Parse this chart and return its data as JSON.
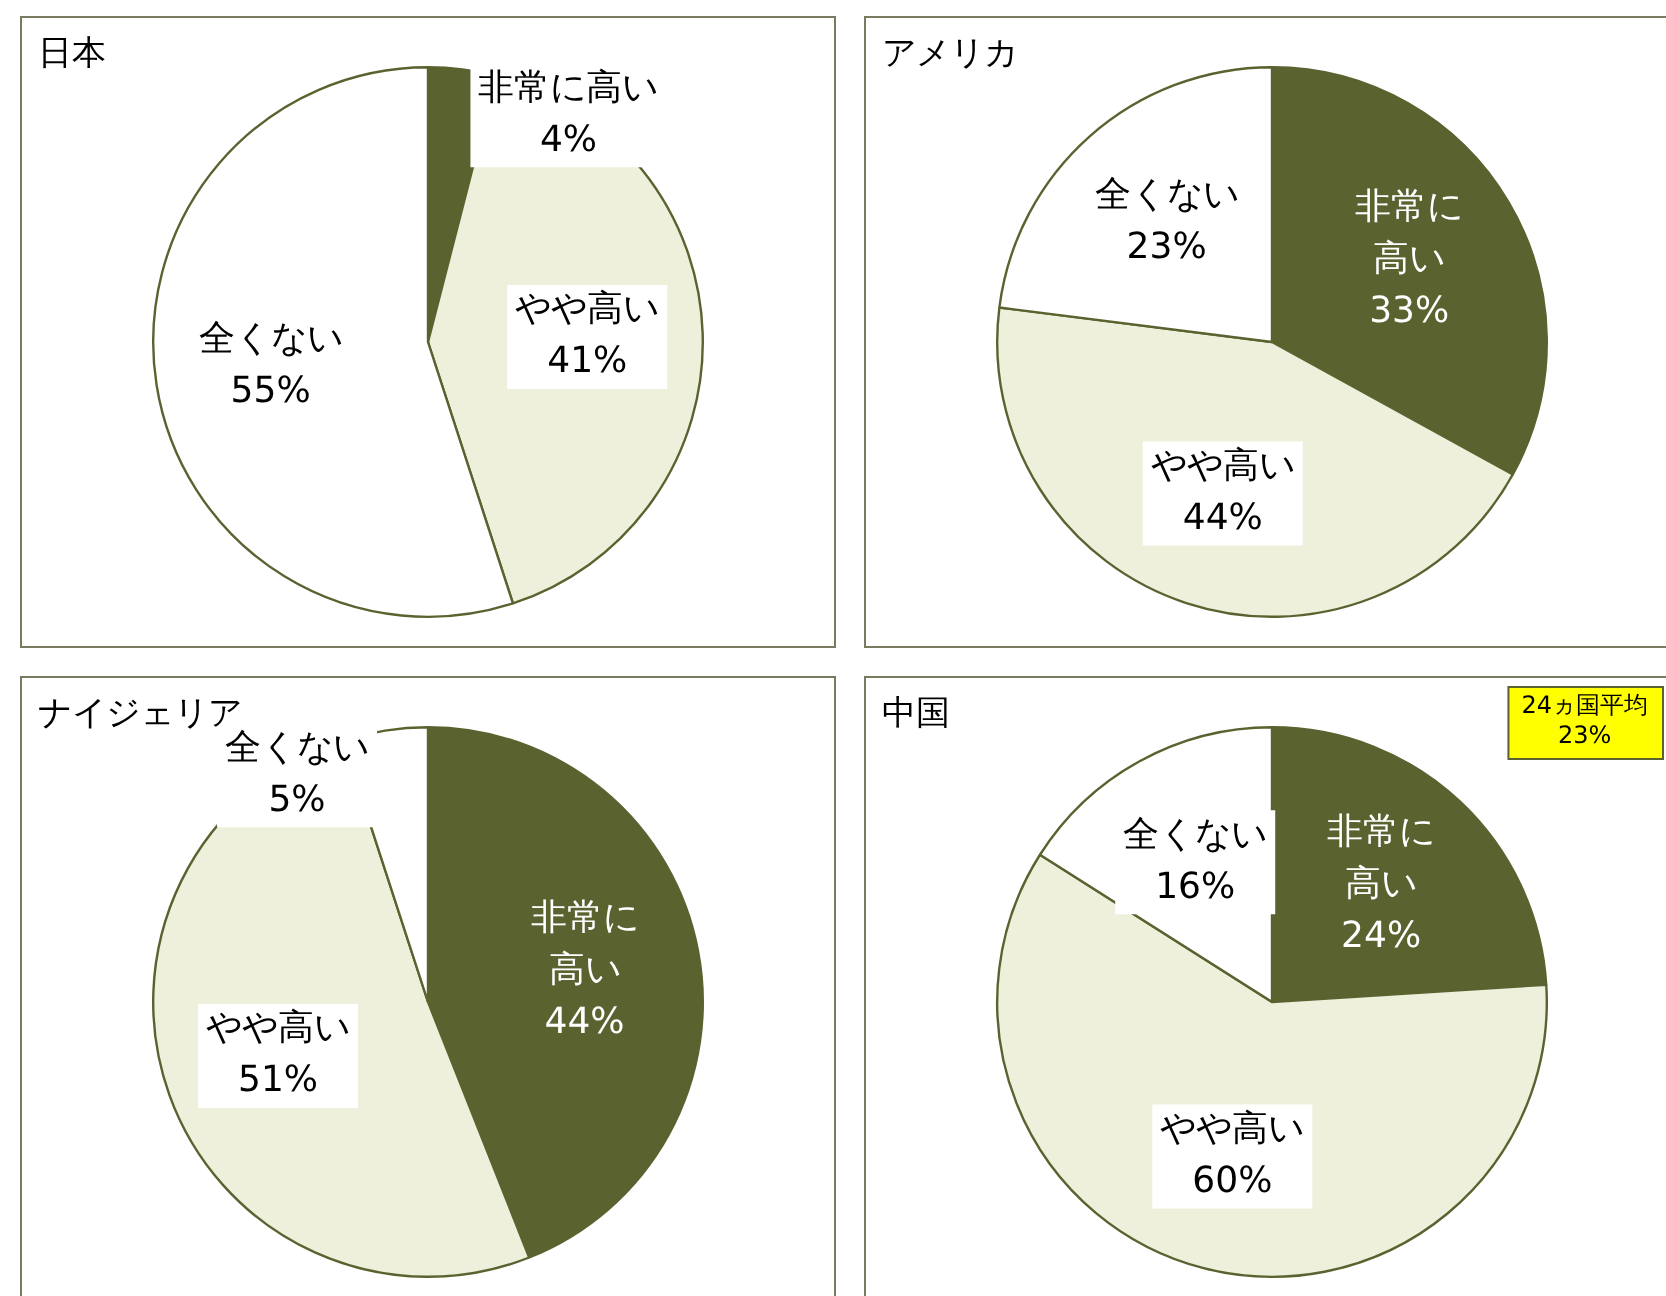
{
  "chart_data": [
    {
      "type": "pie",
      "title": "日本",
      "categories": [
        "非常に高い",
        "やや高い",
        "全くない"
      ],
      "values": [
        4,
        41,
        55
      ],
      "colors": [
        "#5a6330",
        "#eef0dc",
        "#ffffff"
      ],
      "value_labels": [
        "4%",
        "41%",
        "55%"
      ]
    },
    {
      "type": "pie",
      "title": "アメリカ",
      "categories": [
        "非常に高い",
        "やや高い",
        "全くない"
      ],
      "values": [
        33,
        44,
        23
      ],
      "colors": [
        "#5a6330",
        "#eef0dc",
        "#ffffff"
      ],
      "value_labels": [
        "33%",
        "44%",
        "23%"
      ]
    },
    {
      "type": "pie",
      "title": "ナイジェリア",
      "categories": [
        "非常に高い",
        "やや高い",
        "全くない"
      ],
      "values": [
        44,
        51,
        5
      ],
      "colors": [
        "#5a6330",
        "#eef0dc",
        "#ffffff"
      ],
      "value_labels": [
        "44%",
        "51%",
        "5%"
      ]
    },
    {
      "type": "pie",
      "title": "中国",
      "categories": [
        "非常に高い",
        "やや高い",
        "全くない"
      ],
      "values": [
        24,
        60,
        16
      ],
      "colors": [
        "#5a6330",
        "#eef0dc",
        "#ffffff"
      ],
      "value_labels": [
        "24%",
        "60%",
        "16%"
      ],
      "annotations": [
        "24ヵ国平均\n23%"
      ]
    }
  ]
}
